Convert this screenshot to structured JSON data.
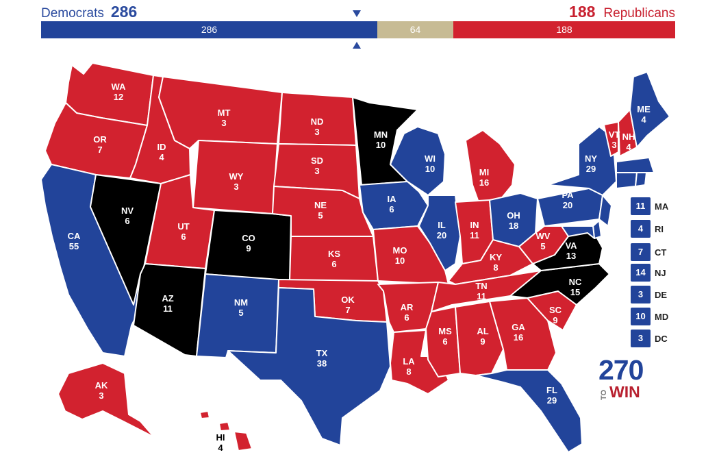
{
  "tally": {
    "dem_label": "Democrats",
    "dem_total": "286",
    "rep_label": "Republicans",
    "rep_total": "188",
    "dem_bar": "286",
    "tossup_bar": "64",
    "rep_bar": "188"
  },
  "colors": {
    "dem": "#22449a",
    "rep": "#d2222f",
    "tossup": "#c7bb94"
  },
  "states": [
    {
      "id": "WA",
      "ev": "12"
    },
    {
      "id": "OR",
      "ev": "7"
    },
    {
      "id": "CA",
      "ev": "55"
    },
    {
      "id": "ID",
      "ev": "4"
    },
    {
      "id": "NV",
      "ev": "6"
    },
    {
      "id": "MT",
      "ev": "3"
    },
    {
      "id": "WY",
      "ev": "3"
    },
    {
      "id": "UT",
      "ev": "6"
    },
    {
      "id": "AZ",
      "ev": "11"
    },
    {
      "id": "CO",
      "ev": "9"
    },
    {
      "id": "NM",
      "ev": "5"
    },
    {
      "id": "ND",
      "ev": "3"
    },
    {
      "id": "SD",
      "ev": "3"
    },
    {
      "id": "NE",
      "ev": "5"
    },
    {
      "id": "KS",
      "ev": "6"
    },
    {
      "id": "OK",
      "ev": "7"
    },
    {
      "id": "TX",
      "ev": "38"
    },
    {
      "id": "MN",
      "ev": "10"
    },
    {
      "id": "IA",
      "ev": "6"
    },
    {
      "id": "MO",
      "ev": "10"
    },
    {
      "id": "AR",
      "ev": "6"
    },
    {
      "id": "LA",
      "ev": "8"
    },
    {
      "id": "WI",
      "ev": "10"
    },
    {
      "id": "IL",
      "ev": "20"
    },
    {
      "id": "MI",
      "ev": "16"
    },
    {
      "id": "IN",
      "ev": "11"
    },
    {
      "id": "OH",
      "ev": "18"
    },
    {
      "id": "KY",
      "ev": "8"
    },
    {
      "id": "TN",
      "ev": "11"
    },
    {
      "id": "MS",
      "ev": "6"
    },
    {
      "id": "AL",
      "ev": "9"
    },
    {
      "id": "GA",
      "ev": "16"
    },
    {
      "id": "FL",
      "ev": "29"
    },
    {
      "id": "SC",
      "ev": "9"
    },
    {
      "id": "NC",
      "ev": "15"
    },
    {
      "id": "VA",
      "ev": "13"
    },
    {
      "id": "WV",
      "ev": "5"
    },
    {
      "id": "PA",
      "ev": "20"
    },
    {
      "id": "NY",
      "ev": "29"
    },
    {
      "id": "VT",
      "ev": "3"
    },
    {
      "id": "NH",
      "ev": "4"
    },
    {
      "id": "ME",
      "ev": "4"
    },
    {
      "id": "AK",
      "ev": "3"
    },
    {
      "id": "HI",
      "ev": "4"
    }
  ],
  "small_states": [
    {
      "ev": "11",
      "abbr": "MA"
    },
    {
      "ev": "4",
      "abbr": "RI"
    },
    {
      "ev": "7",
      "abbr": "CT"
    },
    {
      "ev": "14",
      "abbr": "NJ"
    },
    {
      "ev": "3",
      "abbr": "DE"
    },
    {
      "ev": "10",
      "abbr": "MD"
    },
    {
      "ev": "3",
      "abbr": "DC"
    }
  ],
  "logo": {
    "number": "270",
    "to": "TO",
    "win": "WIN"
  }
}
